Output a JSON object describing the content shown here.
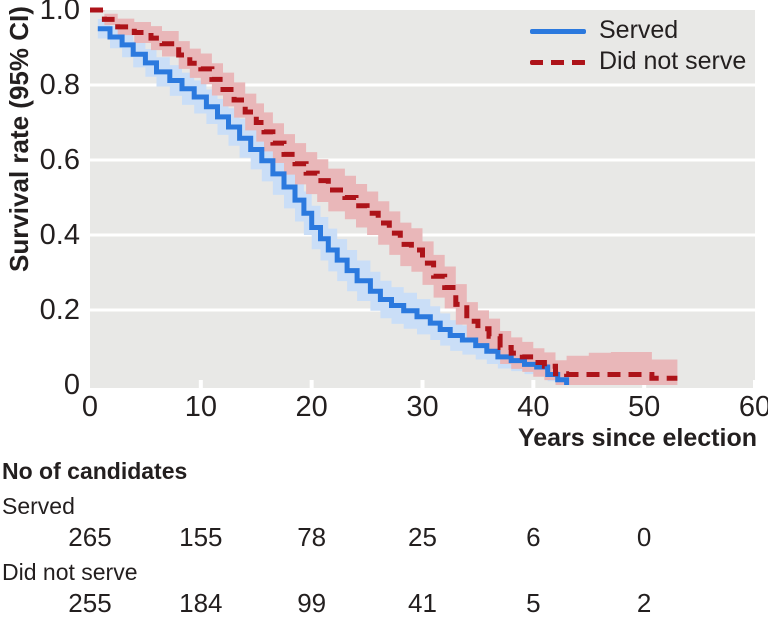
{
  "chart": {
    "y_axis_label": "Survival rate (95% CI)",
    "x_axis_label": "Years since election",
    "legend": {
      "served": "Served",
      "did_not_serve": "Did not serve"
    }
  },
  "risk_table": {
    "title": "No of candidates",
    "rows": [
      {
        "label": "Served",
        "counts": [
          "265",
          "155",
          "78",
          "25",
          "6",
          "0"
        ]
      },
      {
        "label": "Did not serve",
        "counts": [
          "255",
          "184",
          "99",
          "41",
          "5",
          "2"
        ]
      }
    ],
    "count_times": [
      0,
      10,
      20,
      30,
      40,
      50
    ]
  },
  "colors": {
    "served_line": "#2b79de",
    "served_band": "#cadef7",
    "did_not_serve_line": "#ad1319",
    "did_not_serve_band": "#e9b7b9",
    "plot_background": "#e8e8e6",
    "gridline": "#ffffff",
    "text": "#231f1f"
  },
  "chart_data": {
    "type": "line",
    "subtype": "kaplan-meier-step",
    "title": "",
    "xlabel": "Years since election",
    "ylabel": "Survival rate (95% CI)",
    "xlim": [
      0,
      60
    ],
    "ylim": [
      0,
      1
    ],
    "x_ticks": [
      0,
      10,
      20,
      30,
      40,
      50,
      60
    ],
    "y_ticks": [
      1.0,
      0.8,
      0.6,
      0.4,
      0.2,
      0
    ],
    "y_tick_labels": [
      "1.0",
      "0.8",
      "0.6",
      "0.4",
      "0.2",
      "0"
    ],
    "grid": "horizontal-white-on-gray",
    "legend_position": "top-right-inside",
    "point_format": [
      "years_since_election",
      "survival_rate",
      "ci_half_width"
    ],
    "series": [
      {
        "name": "Served",
        "style": "solid",
        "color": "#2b79de",
        "ci_color": "#cadef7",
        "points": [
          [
            0.7,
            0.95,
            0.026
          ],
          [
            1.8,
            0.928,
            0.03
          ],
          [
            2.9,
            0.907,
            0.033
          ],
          [
            3.9,
            0.882,
            0.035
          ],
          [
            5,
            0.859,
            0.037
          ],
          [
            6,
            0.835,
            0.039
          ],
          [
            7.2,
            0.812,
            0.041
          ],
          [
            8.3,
            0.79,
            0.043
          ],
          [
            9.4,
            0.768,
            0.044
          ],
          [
            10.5,
            0.742,
            0.046
          ],
          [
            11.5,
            0.715,
            0.048
          ],
          [
            12.5,
            0.688,
            0.05
          ],
          [
            13.5,
            0.658,
            0.052
          ],
          [
            14.5,
            0.628,
            0.053
          ],
          [
            15.5,
            0.598,
            0.055
          ],
          [
            16.5,
            0.563,
            0.056
          ],
          [
            17.5,
            0.528,
            0.057
          ],
          [
            18.5,
            0.493,
            0.057
          ],
          [
            19.3,
            0.458,
            0.058
          ],
          [
            20,
            0.42,
            0.058
          ],
          [
            20.8,
            0.39,
            0.058
          ],
          [
            21.5,
            0.36,
            0.057
          ],
          [
            22.3,
            0.333,
            0.056
          ],
          [
            23.2,
            0.305,
            0.055
          ],
          [
            24.1,
            0.278,
            0.054
          ],
          [
            25.3,
            0.25,
            0.052
          ],
          [
            26.2,
            0.228,
            0.05
          ],
          [
            27.2,
            0.212,
            0.049
          ],
          [
            28.3,
            0.198,
            0.048
          ],
          [
            29.5,
            0.182,
            0.047
          ],
          [
            30.7,
            0.165,
            0.045
          ],
          [
            31.6,
            0.148,
            0.043
          ],
          [
            32.5,
            0.132,
            0.041
          ],
          [
            33.6,
            0.12,
            0.039
          ],
          [
            34.8,
            0.105,
            0.037
          ],
          [
            35.8,
            0.09,
            0.034
          ],
          [
            36.8,
            0.075,
            0.031
          ],
          [
            38,
            0.065,
            0.028
          ],
          [
            39.2,
            0.055,
            0.026
          ],
          [
            40.3,
            0.048,
            0.024
          ],
          [
            41.3,
            0.028,
            0.018
          ],
          [
            42.2,
            0.014,
            0.012
          ],
          [
            43,
            0,
            0
          ]
        ]
      },
      {
        "name": "Did not serve",
        "style": "dashed",
        "color": "#ad1319",
        "ci_color": "#e9b7b9",
        "points": [
          [
            0,
            1,
            0.005
          ],
          [
            1.3,
            0.975,
            0.015
          ],
          [
            2.5,
            0.955,
            0.022
          ],
          [
            4,
            0.94,
            0.028
          ],
          [
            5.5,
            0.925,
            0.032
          ],
          [
            6.5,
            0.91,
            0.034
          ],
          [
            8,
            0.88,
            0.037
          ],
          [
            9,
            0.858,
            0.039
          ],
          [
            10,
            0.843,
            0.041
          ],
          [
            11,
            0.815,
            0.043
          ],
          [
            12,
            0.788,
            0.045
          ],
          [
            13,
            0.76,
            0.047
          ],
          [
            14,
            0.728,
            0.049
          ],
          [
            15,
            0.7,
            0.051
          ],
          [
            15.7,
            0.675,
            0.052
          ],
          [
            16.5,
            0.645,
            0.053
          ],
          [
            17.5,
            0.615,
            0.054
          ],
          [
            18.5,
            0.59,
            0.055
          ],
          [
            19.5,
            0.565,
            0.056
          ],
          [
            20.5,
            0.545,
            0.057
          ],
          [
            21.5,
            0.52,
            0.057
          ],
          [
            23,
            0.5,
            0.058
          ],
          [
            24,
            0.478,
            0.058
          ],
          [
            25,
            0.458,
            0.058
          ],
          [
            26,
            0.432,
            0.058
          ],
          [
            27,
            0.405,
            0.058
          ],
          [
            28,
            0.375,
            0.058
          ],
          [
            29,
            0.36,
            0.058
          ],
          [
            30,
            0.325,
            0.058
          ],
          [
            31,
            0.29,
            0.057
          ],
          [
            32,
            0.26,
            0.056
          ],
          [
            33,
            0.215,
            0.054
          ],
          [
            34,
            0.17,
            0.051
          ],
          [
            35,
            0.15,
            0.049
          ],
          [
            36,
            0.13,
            0.047
          ],
          [
            37,
            0.1,
            0.044
          ],
          [
            38,
            0.085,
            0.042
          ],
          [
            39,
            0.075,
            0.04
          ],
          [
            40,
            0.06,
            0.038
          ],
          [
            41,
            0.05,
            0.037
          ],
          [
            42,
            0.03,
            0.036
          ],
          [
            43,
            0.028,
            0.05
          ],
          [
            45,
            0.028,
            0.058
          ],
          [
            47,
            0.028,
            0.06
          ],
          [
            50,
            0.028,
            0.06
          ],
          [
            50.7,
            0.018,
            0.05
          ],
          [
            53,
            0.018,
            0.05
          ]
        ]
      }
    ]
  }
}
